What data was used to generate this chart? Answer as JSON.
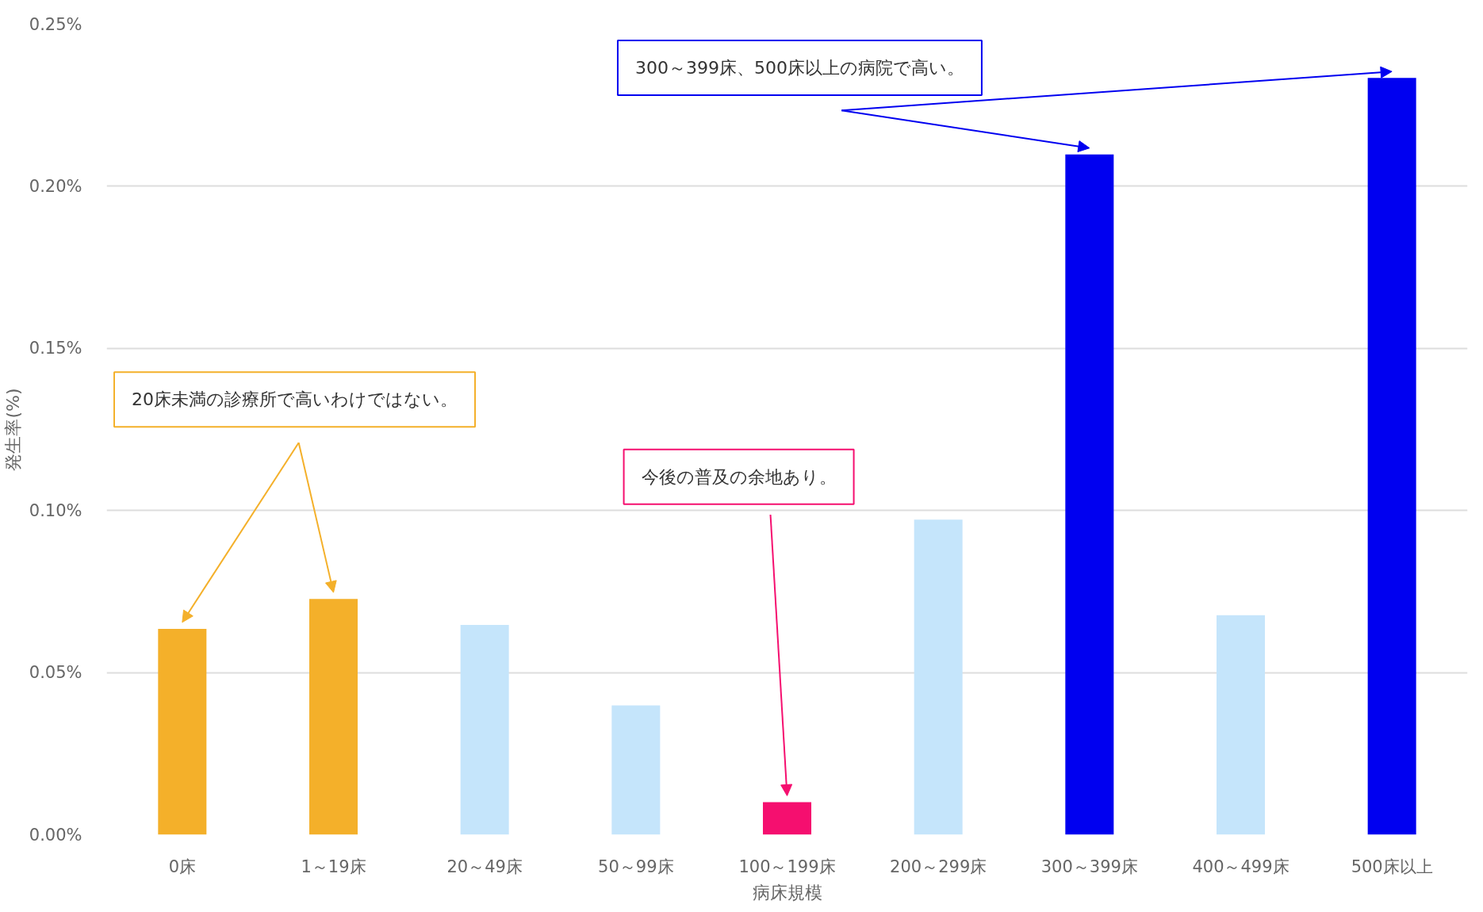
{
  "chart_data": {
    "type": "bar",
    "xlabel": "病床規模",
    "ylabel": "発生率(%)",
    "categories": [
      "0床",
      "1～19床",
      "20～49床",
      "50～99床",
      "100～199床",
      "200～299床",
      "300～399床",
      "400～499床",
      "500床以上"
    ],
    "values": [
      0.0635,
      0.0727,
      0.0647,
      0.0399,
      0.01,
      0.0972,
      0.2098,
      0.0677,
      0.2334
    ],
    "colors": [
      "#f4b02a",
      "#f4b02a",
      "#c5e5fb",
      "#c5e5fb",
      "#f50f6f",
      "#c5e5fb",
      "#0000f0",
      "#c5e5fb",
      "#0000f0"
    ],
    "ylim": [
      0,
      0.25
    ],
    "yticks": [
      {
        "value": 0,
        "label": "0.00%"
      },
      {
        "value": 0.05,
        "label": "0.05%"
      },
      {
        "value": 0.1,
        "label": "0.10%"
      },
      {
        "value": 0.15,
        "label": "0.15%"
      },
      {
        "value": 0.2,
        "label": "0.20%"
      },
      {
        "value": 0.25,
        "label": "0.25%"
      }
    ],
    "grid": "y",
    "annotations": [
      "20床未満の診療所で高いわけではない。",
      "今後の普及の余地あり。",
      "300～399床、500床以上の病院で高い。"
    ]
  }
}
